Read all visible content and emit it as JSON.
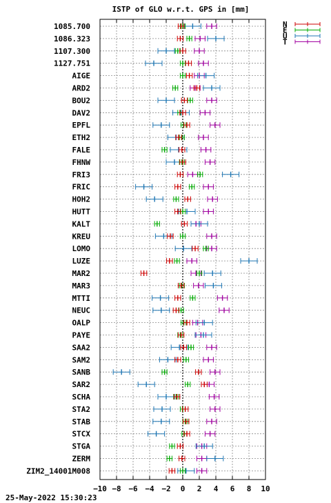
{
  "chart_data": {
    "type": "errorbar",
    "title": "ISTP of GLO w.r.t. GPS in [mm]",
    "xlim": [
      -10,
      10
    ],
    "xticks": [
      -10,
      -8,
      -6,
      -4,
      -2,
      0,
      2,
      4,
      6,
      8,
      10
    ],
    "grid": true,
    "legend_position": "top-right",
    "series": [
      {
        "name": "N",
        "color": "#cc0000"
      },
      {
        "name": "E",
        "color": "#00aa00"
      },
      {
        "name": "U",
        "color": "#1f77b4"
      },
      {
        "name": "T",
        "color": "#a000a0"
      }
    ],
    "categories": [
      "1085.700",
      "1086.323",
      "1107.300",
      "1127.751",
      "AIGE",
      "ARD2",
      "BOU2",
      "DAV2",
      "EPFL",
      "ETH2",
      "FALE",
      "FHNW",
      "FRI3",
      "FRIC",
      "HOH2",
      "HUTT",
      "KALT",
      "KREU",
      "LOMO",
      "LUZE",
      "MAR2",
      "MAR3",
      "MTTI",
      "NEUC",
      "OALP",
      "PAYE",
      "SAA2",
      "SAM2",
      "SANB",
      "SAR2",
      "SCHA",
      "STA2",
      "STAB",
      "STCX",
      "STGA",
      "ZERM",
      "ZIM2_14001M008"
    ],
    "values": [
      {
        "N": -0.2,
        "E": 0.0,
        "U": 1.2,
        "T": 3.5
      },
      {
        "N": -0.3,
        "E": 0.8,
        "U": 4.0,
        "T": 2.1
      },
      {
        "N": 0.0,
        "E": -0.6,
        "U": -2.0,
        "T": 2.0
      },
      {
        "N": 0.7,
        "E": 0.0,
        "U": -3.5,
        "T": 2.5
      },
      {
        "N": 0.8,
        "E": 0.0,
        "U": 2.8,
        "T": 2.0
      },
      {
        "N": 1.7,
        "E": -0.9,
        "U": 3.5,
        "T": 1.5
      },
      {
        "N": 0.2,
        "E": 0.9,
        "U": -2.0,
        "T": 3.5
      },
      {
        "N": 0.0,
        "E": -0.3,
        "U": -0.2,
        "T": 2.7
      },
      {
        "N": 0.5,
        "E": 0.1,
        "U": -2.6,
        "T": 3.9
      },
      {
        "N": -0.5,
        "E": -0.1,
        "U": -0.8,
        "T": 2.5
      },
      {
        "N": -0.1,
        "E": -2.2,
        "U": -0.5,
        "T": 2.8
      },
      {
        "N": 0.0,
        "E": -0.1,
        "U": -1.0,
        "T": 3.3
      },
      {
        "N": -0.3,
        "E": 2.1,
        "U": 5.8,
        "T": 1.2
      },
      {
        "N": -0.6,
        "E": 1.1,
        "U": -4.7,
        "T": 3.1
      },
      {
        "N": 0.6,
        "E": -0.8,
        "U": -3.4,
        "T": 3.6
      },
      {
        "N": -0.6,
        "E": 0.0,
        "U": 0.5,
        "T": 3.1
      },
      {
        "N": 0.2,
        "E": -3.1,
        "U": 2.0,
        "T": 1.6
      },
      {
        "N": -1.5,
        "E": 0.0,
        "U": -2.3,
        "T": 3.5
      },
      {
        "N": 1.5,
        "E": 2.8,
        "U": 0.1,
        "T": 3.5
      },
      {
        "N": -1.6,
        "E": -0.7,
        "U": 8.0,
        "T": 1.1
      },
      {
        "N": -4.7,
        "E": 2.0,
        "U": 3.6,
        "T": 1.6
      },
      {
        "N": -0.2,
        "E": -0.1,
        "U": 3.7,
        "T": 1.9
      },
      {
        "N": -0.6,
        "E": 1.2,
        "U": -2.7,
        "T": 4.8
      },
      {
        "N": -0.8,
        "E": -0.2,
        "U": -2.6,
        "T": 5.0
      },
      {
        "N": 0.5,
        "E": 0.1,
        "U": 2.6,
        "T": 1.8
      },
      {
        "N": -0.2,
        "E": -0.3,
        "U": 2.5,
        "T": 2.2
      },
      {
        "N": 0.1,
        "E": 1.0,
        "U": -0.4,
        "T": 3.5
      },
      {
        "N": -0.6,
        "E": 0.4,
        "U": -1.8,
        "T": 3.1
      },
      {
        "N": 1.9,
        "E": -2.2,
        "U": -7.4,
        "T": 3.9
      },
      {
        "N": 2.6,
        "E": 0.6,
        "U": -4.4,
        "T": 3.2
      },
      {
        "N": -0.7,
        "E": -0.8,
        "U": -2.0,
        "T": 3.8
      },
      {
        "N": 0.3,
        "E": 0.0,
        "U": -2.5,
        "T": 3.9
      },
      {
        "N": 0.4,
        "E": 0.3,
        "U": -2.6,
        "T": 3.5
      },
      {
        "N": 0.5,
        "E": 0.2,
        "U": -3.2,
        "T": 3.3
      },
      {
        "N": -0.3,
        "E": -1.3,
        "U": 2.6,
        "T": 2.3
      },
      {
        "N": -0.1,
        "E": -1.6,
        "U": 3.9,
        "T": 2.3
      },
      {
        "N": -1.3,
        "E": 0.0,
        "U": 0.4,
        "T": 2.3
      }
    ],
    "errors": {
      "N": 0.35,
      "E": 0.3,
      "U": 1.0,
      "T": 0.6
    }
  },
  "footer": {
    "timestamp": "25-May-2022 15:30:23"
  }
}
